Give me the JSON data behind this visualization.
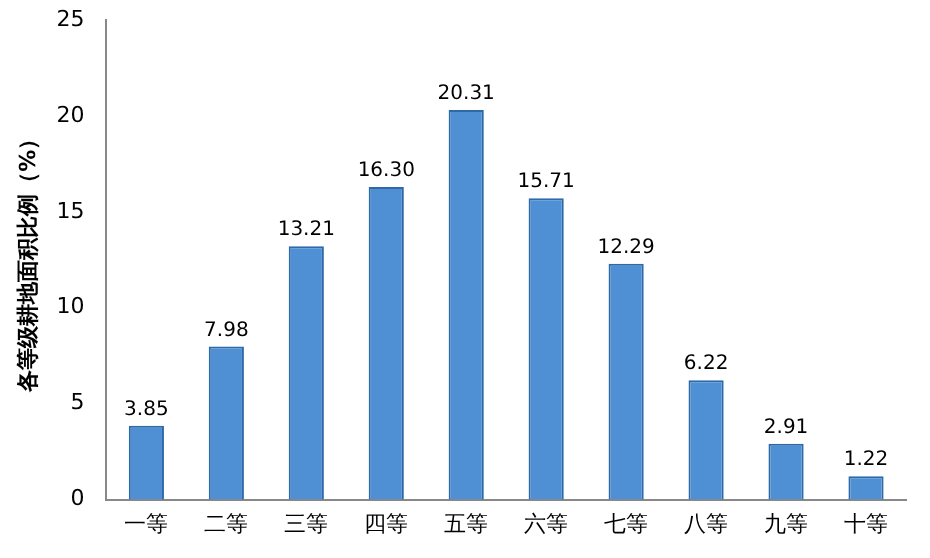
{
  "chart_data": {
    "type": "bar",
    "ylabel": "各等级耕地面积比例（%）",
    "categories": [
      "一等",
      "二等",
      "三等",
      "四等",
      "五等",
      "六等",
      "七等",
      "八等",
      "九等",
      "十等"
    ],
    "values": [
      3.85,
      7.98,
      13.21,
      16.3,
      20.31,
      15.71,
      12.29,
      6.22,
      2.91,
      1.22
    ],
    "value_labels": [
      "3.85",
      "7.98",
      "13.21",
      "16.30",
      "20.31",
      "15.71",
      "12.29",
      "6.22",
      "2.91",
      "1.22"
    ],
    "color": "#4f8fd4",
    "ylim": [
      0,
      25
    ],
    "yticks": [
      0,
      5,
      10,
      15,
      20,
      25
    ],
    "grid": false,
    "legend": false
  }
}
